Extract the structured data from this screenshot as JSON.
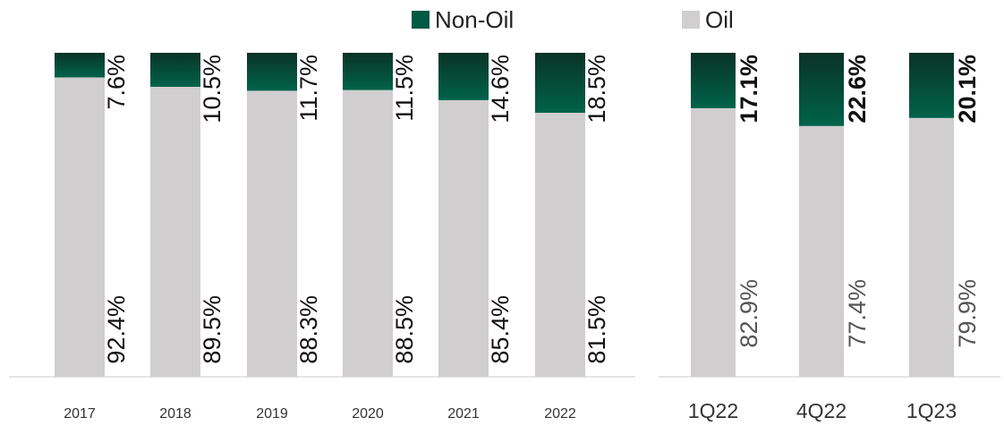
{
  "legend": {
    "non_oil_label": "Non-Oil",
    "oil_label": "Oil",
    "non_oil_color": "#005a44",
    "oil_color": "#d0cecf"
  },
  "chart_data": [
    {
      "type": "bar",
      "stacked": true,
      "normalized": true,
      "categories": [
        "2017",
        "2018",
        "2019",
        "2020",
        "2021",
        "2022"
      ],
      "series": [
        {
          "name": "Oil",
          "values": [
            92.4,
            89.5,
            88.3,
            88.5,
            85.4,
            81.5
          ],
          "labels": [
            "92.4%",
            "89.5%",
            "88.3%",
            "88.5%",
            "85.4%",
            "81.5%"
          ]
        },
        {
          "name": "Non-Oil",
          "values": [
            7.6,
            10.5,
            11.7,
            11.5,
            14.6,
            18.5
          ],
          "labels": [
            "7.6%",
            "10.5%",
            "11.7%",
            "11.5%",
            "14.6%",
            "18.5%"
          ]
        }
      ],
      "ylim": [
        0,
        100
      ],
      "legend_position": "top"
    },
    {
      "type": "bar",
      "stacked": true,
      "normalized": true,
      "categories": [
        "1Q22",
        "4Q22",
        "1Q23"
      ],
      "series": [
        {
          "name": "Oil",
          "values": [
            82.9,
            77.4,
            79.9
          ],
          "labels": [
            "82.9%",
            "77.4%",
            "79.9%"
          ]
        },
        {
          "name": "Non-Oil",
          "values": [
            17.1,
            22.6,
            20.1
          ],
          "labels": [
            "17.1%",
            "22.6%",
            "20.1%"
          ]
        }
      ],
      "ylim": [
        0,
        100
      ],
      "legend_position": "top"
    }
  ]
}
